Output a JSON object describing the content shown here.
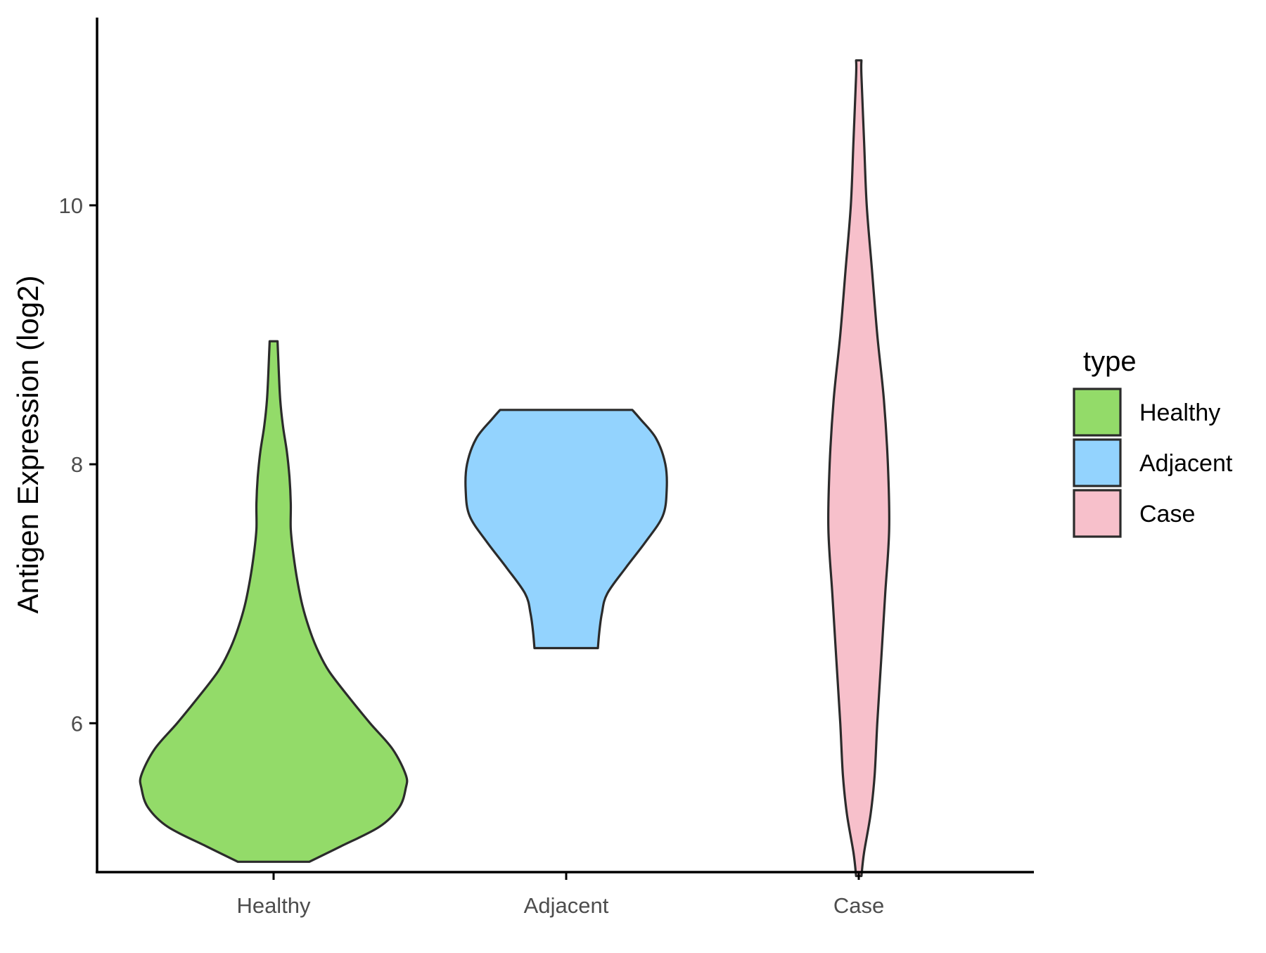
{
  "chart_data": {
    "type": "violin",
    "title": "",
    "xlabel": "",
    "ylabel": "Antigen Expression (log2)",
    "categories": [
      "Healthy",
      "Adjacent",
      "Case"
    ],
    "ylim": [
      4.85,
      11.45
    ],
    "yticks": [
      6,
      8,
      10
    ],
    "grid": false,
    "legend": {
      "title": "type",
      "placement": "right",
      "entries": [
        "Healthy",
        "Adjacent",
        "Case"
      ]
    },
    "colors": {
      "Healthy": "#93DB69",
      "Adjacent": "#93D3FE",
      "Case": "#F7C0CB",
      "outline": "#2b2b2b"
    },
    "series": [
      {
        "category": "Healthy",
        "min": 4.93,
        "max": 8.95,
        "density_profile": [
          [
            4.93,
            0.27
          ],
          [
            5.05,
            0.51
          ],
          [
            5.2,
            0.8
          ],
          [
            5.35,
            0.95
          ],
          [
            5.5,
            1.0
          ],
          [
            5.6,
            1.0
          ],
          [
            5.8,
            0.9
          ],
          [
            6.0,
            0.73
          ],
          [
            6.2,
            0.57
          ],
          [
            6.4,
            0.42
          ],
          [
            6.55,
            0.34
          ],
          [
            6.7,
            0.28
          ],
          [
            6.9,
            0.22
          ],
          [
            7.1,
            0.18
          ],
          [
            7.3,
            0.15
          ],
          [
            7.5,
            0.13
          ],
          [
            7.7,
            0.13
          ],
          [
            7.9,
            0.12
          ],
          [
            8.1,
            0.1
          ],
          [
            8.3,
            0.07
          ],
          [
            8.5,
            0.05
          ],
          [
            8.7,
            0.04
          ],
          [
            8.95,
            0.03
          ]
        ]
      },
      {
        "category": "Adjacent",
        "min": 6.58,
        "max": 8.42,
        "density_profile": [
          [
            6.58,
            0.24
          ],
          [
            6.7,
            0.25
          ],
          [
            6.85,
            0.27
          ],
          [
            7.0,
            0.31
          ],
          [
            7.2,
            0.45
          ],
          [
            7.4,
            0.6
          ],
          [
            7.6,
            0.73
          ],
          [
            7.8,
            0.76
          ],
          [
            8.0,
            0.75
          ],
          [
            8.2,
            0.68
          ],
          [
            8.35,
            0.56
          ],
          [
            8.42,
            0.5
          ]
        ]
      },
      {
        "category": "Case",
        "min": 4.82,
        "max": 11.12,
        "density_profile": [
          [
            4.82,
            0.02
          ],
          [
            5.0,
            0.04
          ],
          [
            5.3,
            0.09
          ],
          [
            5.6,
            0.12
          ],
          [
            6.0,
            0.14
          ],
          [
            6.5,
            0.17
          ],
          [
            7.0,
            0.2
          ],
          [
            7.5,
            0.23
          ],
          [
            8.0,
            0.22
          ],
          [
            8.5,
            0.19
          ],
          [
            9.0,
            0.14
          ],
          [
            9.5,
            0.1
          ],
          [
            10.0,
            0.06
          ],
          [
            10.5,
            0.04
          ],
          [
            11.0,
            0.02
          ],
          [
            11.12,
            0.02
          ]
        ]
      }
    ]
  }
}
